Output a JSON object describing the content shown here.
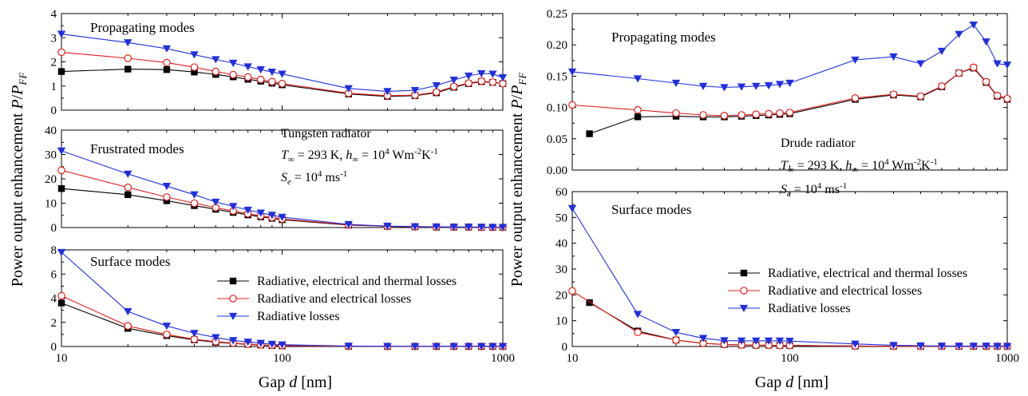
{
  "colors": {
    "loss_all": "#000000",
    "loss_rad_elec": "#e0201b",
    "loss_rad": "#1f2fe0"
  },
  "legend": [
    "Radiative, electrical and thermal losses",
    "Radiative and electrical losses",
    "Radiative losses"
  ],
  "left_figure": {
    "ylabel_prefix": "Power output enhancement ",
    "ylabel_p": "P",
    "ylabel_slash": "/",
    "ylabel_pff": "P",
    "ylabel_ff": "FF",
    "xlabel_prefix": "Gap ",
    "xlabel_d": "d",
    "xlabel_suffix": " [nm]",
    "annotation": {
      "title": "Tungsten radiator",
      "t_sym": "T",
      "inf": "∞",
      "t_val": " = 293 K, ",
      "h_sym": "h",
      "h_val": " = 10",
      "h_exp": "4",
      "h_unit": " Wm",
      "h_unit_exp1": "-2",
      "h_unit2": "K",
      "h_unit_exp2": "-1",
      "s_sym": "S",
      "s_sub": "e",
      "s_val": " = 10",
      "s_exp": "4",
      "s_unit": " ms",
      "s_unit_exp": "-1"
    }
  },
  "right_figure": {
    "annotation": {
      "title": "Drude radiator",
      "t_sym": "T",
      "inf": "∞",
      "t_val": " = 293 K, ",
      "h_sym": "h",
      "h_val": " = 10",
      "h_exp": "4",
      "h_unit": " Wm",
      "h_unit_exp1": "-2",
      "h_unit2": "K",
      "h_unit_exp2": "-1",
      "s_sym": "S",
      "s_sub": "e",
      "s_val": " = 10",
      "s_exp": "4",
      "s_unit": " ms",
      "s_unit_exp": "-1"
    }
  },
  "chart_data": [
    {
      "type": "line",
      "title": "Propagating modes",
      "x_scale": "log",
      "xlim": [
        10,
        1000
      ],
      "ylim": [
        0,
        4
      ],
      "yticks": [
        "0",
        "1",
        "2",
        "3",
        "4"
      ],
      "xticks": [
        "10",
        "100",
        "1000"
      ],
      "x": [
        10,
        20,
        30,
        40,
        50,
        60,
        70,
        80,
        90,
        100,
        200,
        300,
        400,
        500,
        600,
        700,
        800,
        900,
        1000
      ],
      "series": [
        {
          "name": "Radiative, electrical and thermal losses",
          "marker": "square",
          "values": [
            1.6,
            1.7,
            1.68,
            1.58,
            1.48,
            1.38,
            1.28,
            1.2,
            1.12,
            1.05,
            0.67,
            0.57,
            0.6,
            0.72,
            0.95,
            1.1,
            1.18,
            1.15,
            1.1
          ]
        },
        {
          "name": "Radiative and electrical losses",
          "marker": "circle",
          "values": [
            2.4,
            2.15,
            1.97,
            1.78,
            1.6,
            1.47,
            1.37,
            1.27,
            1.18,
            1.1,
            0.7,
            0.6,
            0.62,
            0.75,
            0.98,
            1.12,
            1.2,
            1.16,
            1.1
          ]
        },
        {
          "name": "Radiative losses",
          "marker": "triangle-down",
          "values": [
            3.15,
            2.8,
            2.55,
            2.3,
            2.1,
            1.95,
            1.8,
            1.68,
            1.58,
            1.5,
            0.9,
            0.78,
            0.82,
            1.02,
            1.25,
            1.42,
            1.52,
            1.5,
            1.35
          ]
        }
      ]
    },
    {
      "type": "line",
      "title": "Frustrated modes",
      "x_scale": "log",
      "xlim": [
        10,
        1000
      ],
      "ylim": [
        0,
        40
      ],
      "yticks": [
        "0",
        "10",
        "20",
        "30",
        "40"
      ],
      "xticks": [
        "10",
        "100",
        "1000"
      ],
      "x": [
        10,
        20,
        30,
        40,
        50,
        60,
        70,
        80,
        90,
        100,
        200,
        300,
        400,
        500,
        600,
        700,
        800,
        900,
        1000
      ],
      "series": [
        {
          "name": "Radiative, electrical and thermal losses",
          "marker": "square",
          "values": [
            16,
            13.5,
            11,
            9,
            7.5,
            6.2,
            5.2,
            4.4,
            3.8,
            3.2,
            1.0,
            0.5,
            0.3,
            0.2,
            0.2,
            0.2,
            0.1,
            0.1,
            0.1
          ]
        },
        {
          "name": "Radiative and electrical losses",
          "marker": "circle",
          "values": [
            23.5,
            16.5,
            12.5,
            10,
            8.2,
            6.8,
            5.7,
            4.8,
            4.1,
            3.5,
            1.1,
            0.5,
            0.3,
            0.2,
            0.2,
            0.2,
            0.1,
            0.1,
            0.1
          ]
        },
        {
          "name": "Radiative losses",
          "marker": "triangle-down",
          "values": [
            31.5,
            22,
            17,
            13.5,
            10.5,
            8.7,
            7.2,
            6,
            5.1,
            4.3,
            1.3,
            0.6,
            0.4,
            0.3,
            0.2,
            0.2,
            0.2,
            0.1,
            0.1
          ]
        }
      ]
    },
    {
      "type": "line",
      "title": "Surface modes",
      "x_scale": "log",
      "xlim": [
        10,
        1000
      ],
      "ylim": [
        0,
        8
      ],
      "yticks": [
        "0",
        "2",
        "4",
        "6",
        "8"
      ],
      "xticks": [
        "10",
        "100",
        "1000"
      ],
      "x": [
        10,
        20,
        30,
        40,
        50,
        60,
        70,
        80,
        90,
        100,
        200,
        300,
        400,
        500,
        600,
        700,
        800,
        900,
        1000
      ],
      "series": [
        {
          "name": "Radiative, electrical and thermal losses",
          "marker": "square",
          "values": [
            3.6,
            1.5,
            0.9,
            0.55,
            0.35,
            0.25,
            0.18,
            0.12,
            0.08,
            0.05,
            0.02,
            0.01,
            0.01,
            0.01,
            0.01,
            0.01,
            0.01,
            0.01,
            0.01
          ]
        },
        {
          "name": "Radiative and electrical losses",
          "marker": "circle",
          "values": [
            4.2,
            1.7,
            1.0,
            0.6,
            0.4,
            0.28,
            0.2,
            0.14,
            0.1,
            0.07,
            0.02,
            0.01,
            0.01,
            0.01,
            0.01,
            0.01,
            0.01,
            0.01,
            0.01
          ]
        },
        {
          "name": "Radiative losses",
          "marker": "triangle-down",
          "values": [
            7.8,
            2.9,
            1.7,
            1.1,
            0.75,
            0.5,
            0.38,
            0.28,
            0.2,
            0.15,
            0.04,
            0.02,
            0.01,
            0.01,
            0.01,
            0.01,
            0.01,
            0.01,
            0.01
          ]
        }
      ]
    },
    {
      "type": "line",
      "title": "Propagating modes",
      "x_scale": "log",
      "xlim": [
        10,
        1000
      ],
      "ylim": [
        0,
        0.25
      ],
      "yticks": [
        "0.00",
        "0.05",
        "0.10",
        "0.15",
        "0.20",
        "0.25"
      ],
      "xticks": [
        "10",
        "100",
        "1000"
      ],
      "series": [
        {
          "name": "Radiative, electrical and thermal losses",
          "marker": "square",
          "x": [
            12,
            20,
            30,
            40,
            50,
            60,
            70,
            80,
            90,
            100,
            200,
            300,
            400,
            500,
            600,
            700,
            800,
            900,
            1000
          ],
          "values": [
            0.058,
            0.085,
            0.086,
            0.085,
            0.085,
            0.086,
            0.087,
            0.088,
            0.089,
            0.09,
            0.113,
            0.12,
            0.117,
            0.133,
            0.155,
            0.163,
            0.14,
            0.118,
            0.113
          ]
        },
        {
          "name": "Radiative and electrical losses",
          "marker": "circle",
          "x": [
            10,
            20,
            30,
            40,
            50,
            60,
            70,
            80,
            90,
            100,
            200,
            300,
            400,
            500,
            600,
            700,
            800,
            900,
            1000
          ],
          "values": [
            0.104,
            0.096,
            0.091,
            0.088,
            0.087,
            0.088,
            0.089,
            0.09,
            0.091,
            0.092,
            0.115,
            0.121,
            0.118,
            0.134,
            0.155,
            0.164,
            0.141,
            0.119,
            0.114
          ]
        },
        {
          "name": "Radiative losses",
          "marker": "triangle-down",
          "x": [
            10,
            20,
            30,
            40,
            50,
            60,
            70,
            80,
            90,
            100,
            200,
            300,
            400,
            500,
            600,
            700,
            800,
            900,
            1000
          ],
          "values": [
            0.157,
            0.146,
            0.139,
            0.134,
            0.132,
            0.133,
            0.134,
            0.135,
            0.137,
            0.139,
            0.176,
            0.181,
            0.17,
            0.19,
            0.217,
            0.232,
            0.205,
            0.17,
            0.168
          ]
        }
      ]
    },
    {
      "type": "line",
      "title": "Surface modes",
      "x_scale": "log",
      "xlim": [
        10,
        1000
      ],
      "ylim": [
        0,
        60
      ],
      "yticks": [
        "0",
        "10",
        "20",
        "30",
        "40",
        "50",
        "60"
      ],
      "xticks": [
        "10",
        "100",
        "1000"
      ],
      "series": [
        {
          "name": "Radiative, electrical and thermal losses",
          "marker": "square",
          "x": [
            12,
            20,
            30,
            40,
            50,
            60,
            70,
            80,
            90,
            100,
            200,
            300,
            400,
            500,
            600,
            700,
            800,
            900,
            1000
          ],
          "values": [
            17,
            6,
            2.5,
            1.2,
            0.8,
            0.6,
            0.5,
            0.5,
            0.4,
            0.4,
            0.2,
            0.1,
            0.1,
            0.1,
            0.1,
            0.1,
            0.1,
            0.1,
            0.1
          ]
        },
        {
          "name": "Radiative and electrical losses",
          "marker": "circle",
          "x": [
            10,
            20,
            30,
            40,
            50,
            60,
            70,
            80,
            90,
            100,
            200,
            300,
            400,
            500,
            600,
            700,
            800,
            900,
            1000
          ],
          "values": [
            21.5,
            5.5,
            2.5,
            1.2,
            0.8,
            0.6,
            0.5,
            0.5,
            0.4,
            0.4,
            0.2,
            0.1,
            0.1,
            0.1,
            0.1,
            0.1,
            0.1,
            0.1,
            0.1
          ]
        },
        {
          "name": "Radiative losses",
          "marker": "triangle-down",
          "x": [
            10,
            20,
            30,
            40,
            50,
            60,
            70,
            80,
            90,
            100,
            200,
            300,
            400,
            500,
            600,
            700,
            800,
            900,
            1000
          ],
          "values": [
            53.5,
            12.5,
            5.5,
            3.2,
            2.3,
            2.2,
            2.2,
            2.2,
            2.2,
            2.1,
            1.0,
            0.5,
            0.3,
            0.2,
            0.2,
            0.2,
            0.2,
            0.1,
            0.1
          ]
        }
      ]
    }
  ]
}
